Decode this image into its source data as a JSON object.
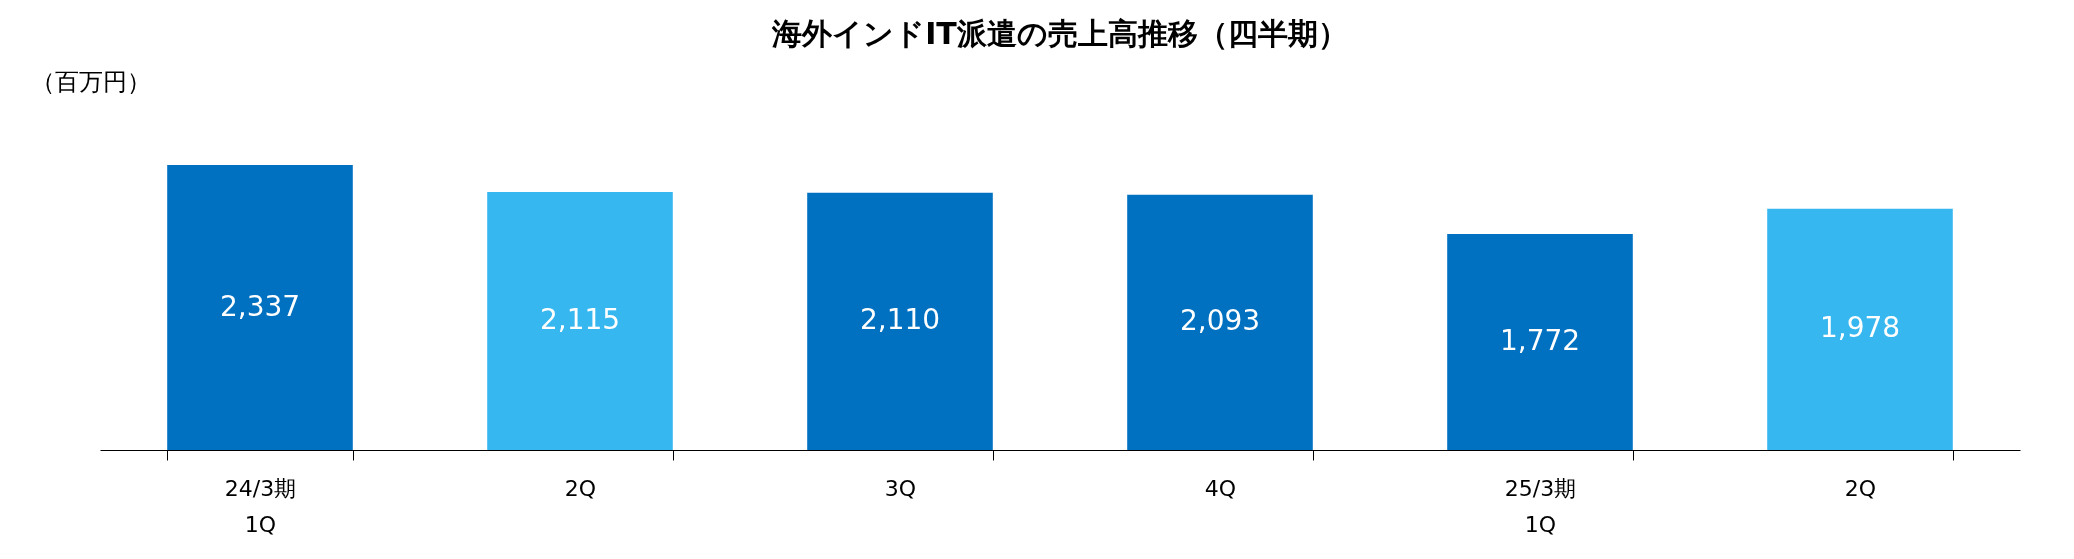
{
  "chart_data": {
    "type": "bar",
    "title": "海外インドIT派遣の売上高推移（四半期）",
    "ylabel": "（百万円）",
    "categories": [
      "24/3期\n1Q",
      "2Q",
      "3Q",
      "4Q",
      "25/3期\n1Q",
      "2Q"
    ],
    "values": [
      2337,
      2115,
      2110,
      2093,
      1772,
      1978
    ],
    "colors": [
      "#0070c0",
      "#37b7f0",
      "#0070c0",
      "#0070c0",
      "#0070c0",
      "#37b7f0"
    ],
    "value_labels": [
      "2,337",
      "2,115",
      "2,110",
      "2,093",
      "1,772",
      "1,978"
    ],
    "grid": false
  }
}
